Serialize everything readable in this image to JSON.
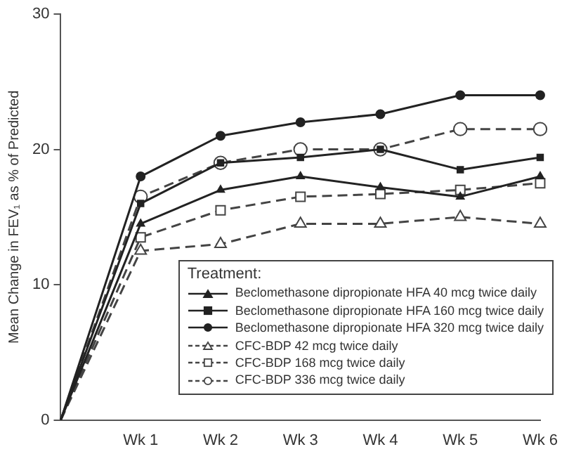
{
  "chart_data": {
    "type": "line",
    "ylabel": "Mean Change in FEV₁ as % of Predicted",
    "legend_title": "Treatment:",
    "legend": "bottom right",
    "categories": [
      null,
      "Wk 1",
      "Wk 2",
      "Wk 3",
      "Wk 4",
      "Wk 5",
      "Wk 6"
    ],
    "ylim": [
      0,
      30
    ],
    "yticks": [
      0,
      10,
      20,
      30
    ],
    "grid": false,
    "series": [
      {
        "name": "Beclomethasone dipropionate HFA 40 mcg twice daily",
        "color": "#222222",
        "marker": "triangle",
        "line_style": "solid",
        "values": [
          0,
          14.5,
          17.0,
          18.0,
          17.2,
          16.5,
          18.0
        ]
      },
      {
        "name": "Beclomethasone dipropionate HFA 160 mcg twice daily",
        "color": "#222222",
        "marker": "square",
        "line_style": "solid",
        "values": [
          0,
          16.0,
          19.0,
          19.4,
          20.0,
          18.5,
          19.4
        ]
      },
      {
        "name": "Beclomethasone dipropionate HFA 320 mcg twice daily",
        "color": "#222222",
        "marker": "circle",
        "line_style": "solid",
        "values": [
          0,
          18.0,
          21.0,
          22.0,
          22.6,
          24.0,
          24.0
        ]
      },
      {
        "name": "CFC-BDP 42 mcg twice daily",
        "color": "#444444",
        "marker": "triangle",
        "line_style": "dashed",
        "values": [
          0,
          12.5,
          13.0,
          14.5,
          14.5,
          15.0,
          14.5
        ]
      },
      {
        "name": "CFC-BDP 168 mcg twice daily",
        "color": "#444444",
        "marker": "square",
        "line_style": "dashed",
        "values": [
          0,
          13.5,
          15.5,
          16.5,
          16.7,
          17.0,
          17.5
        ]
      },
      {
        "name": "CFC-BDP 336 mcg twice daily",
        "color": "#444444",
        "marker": "circle",
        "line_style": "dashed",
        "values": [
          0,
          16.5,
          19.0,
          20.0,
          20.0,
          21.5,
          21.5
        ]
      }
    ]
  }
}
